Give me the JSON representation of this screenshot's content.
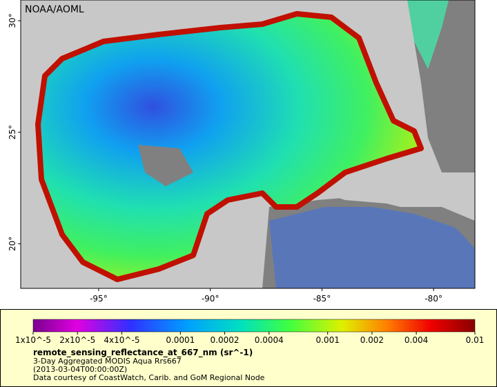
{
  "map": {
    "source_label": "NOAA/AOML",
    "xlim": [
      -98.49,
      -78.15
    ],
    "ylim": [
      18.0,
      30.93
    ],
    "xticks": [
      {
        "value": -95,
        "label": "-95°"
      },
      {
        "value": -90,
        "label": "-90°"
      },
      {
        "value": -85,
        "label": "-85°"
      },
      {
        "value": -80,
        "label": "-80°"
      }
    ],
    "yticks": [
      {
        "value": 30,
        "label": "30°"
      },
      {
        "value": 25,
        "label": "25°"
      },
      {
        "value": 20,
        "label": "20°"
      }
    ]
  },
  "legend": {
    "colorbar": {
      "scale": "log",
      "clim": [
        1e-05,
        0.01
      ],
      "ticks": [
        {
          "value": 1e-05,
          "label": "1x10^-5"
        },
        {
          "value": 2e-05,
          "label": "2x10^-5"
        },
        {
          "value": 4e-05,
          "label": "4x10^-5"
        },
        0.0001,
        0.0002,
        0.0004,
        0.001,
        0.002,
        0.004,
        0.01
      ]
    },
    "title": "remote_sensing_reflectance_at_667_nm (sr^-1)",
    "lines": [
      "3-Day Aggregated MODIS Aqua Rrs667",
      "(2013-03-04T00:00:00Z)",
      "Data courtesy of CoastWatch, Carib. and GoM Regional Node"
    ]
  }
}
